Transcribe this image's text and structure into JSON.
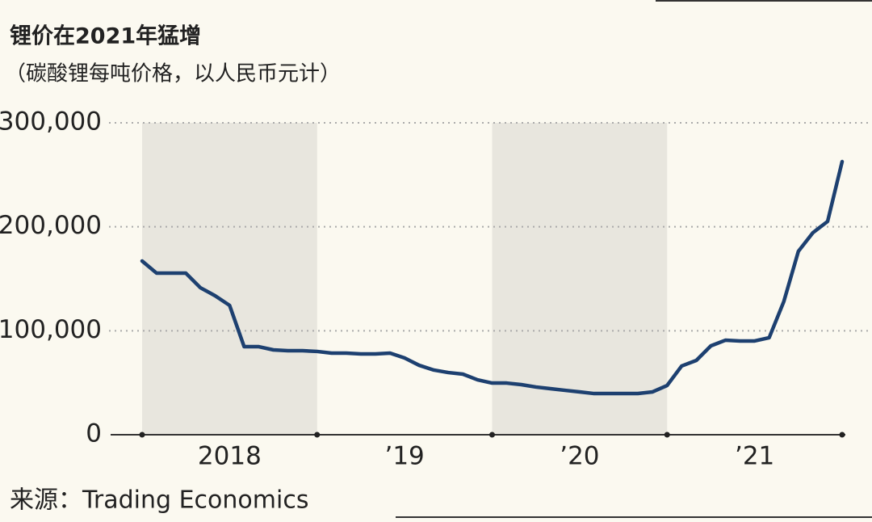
{
  "chart_data": {
    "type": "line",
    "title": "锂价在2021年猛增",
    "subtitle": "（碳酸锂每吨价格，以人民币元计）",
    "source": "来源：Trading Economics",
    "x": [
      2018,
      2018.083,
      2018.167,
      2018.25,
      2018.333,
      2018.417,
      2018.5,
      2018.583,
      2018.667,
      2018.75,
      2018.833,
      2018.917,
      2019,
      2019.083,
      2019.167,
      2019.25,
      2019.333,
      2019.417,
      2019.5,
      2019.583,
      2019.667,
      2019.75,
      2019.833,
      2019.917,
      2020,
      2020.083,
      2020.167,
      2020.25,
      2020.333,
      2020.417,
      2020.5,
      2020.583,
      2020.667,
      2020.75,
      2020.833,
      2020.917,
      2021,
      2021.083,
      2021.167,
      2021.25,
      2021.333,
      2021.417,
      2021.5,
      2021.583,
      2021.667,
      2021.75,
      2021.833,
      2021.917,
      2022
    ],
    "series": [
      {
        "color": "#1d4070",
        "values": [
          167100,
          155400,
          155400,
          155400,
          141400,
          133700,
          124400,
          84700,
          84700,
          81600,
          80800,
          80800,
          80100,
          78500,
          78500,
          77700,
          77700,
          78500,
          73800,
          66800,
          62200,
          59800,
          58300,
          52800,
          49700,
          49700,
          48200,
          45900,
          44300,
          42700,
          41200,
          39600,
          39600,
          39600,
          39600,
          41200,
          47400,
          66100,
          71500,
          85500,
          90900,
          90200,
          90200,
          93300,
          128200,
          176400,
          194300,
          205200,
          262700
        ]
      }
    ],
    "xlim": [
      2018,
      2022
    ],
    "xticks": [
      2018,
      2019,
      2020,
      2021,
      2022
    ],
    "xlabels": [
      {
        "value": 2018.5,
        "label": "2018"
      },
      {
        "value": 2019.5,
        "label": "’19"
      },
      {
        "value": 2020.5,
        "label": "’20"
      },
      {
        "value": 2021.5,
        "label": "’21"
      }
    ],
    "shaded": [
      [
        2018,
        2019
      ],
      [
        2020,
        2021
      ]
    ],
    "shade_color": "#e8e6de",
    "ylim": [
      0,
      300000
    ],
    "yticks": [
      0,
      {
        "value": 100000,
        "label": "100,000"
      },
      {
        "value": 200000,
        "label": "200,000"
      },
      {
        "value": 300000,
        "label": "300,000"
      }
    ],
    "grid": true
  }
}
